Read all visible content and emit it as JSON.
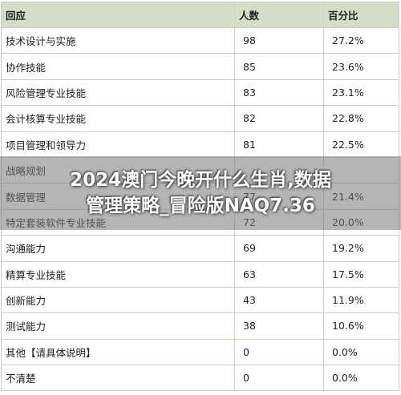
{
  "table": {
    "header": [
      "回应",
      "人数",
      "百分比"
    ],
    "rows": [
      [
        "技术设计与实施",
        "98",
        "27.2%"
      ],
      [
        "协作技能",
        "85",
        "23.6%"
      ],
      [
        "风险管理专业技能",
        "83",
        "23.1%"
      ],
      [
        "会计核算专业技能",
        "82",
        "22.8%"
      ],
      [
        "项目管理和领导力",
        "81",
        "22.5%"
      ],
      [
        "战略规划"
      ],
      [
        "数据管理",
        "77",
        "21.4%"
      ],
      [
        "特定套装软件专业技能",
        "72",
        "20.0%"
      ],
      [
        "沟通能力",
        "69",
        "19.2%"
      ],
      [
        "精算专业技能",
        "63",
        "17.5%"
      ],
      [
        "创新能力",
        "43",
        "11.9%"
      ],
      [
        "测试能力",
        "38",
        "10.6%"
      ],
      [
        "其他【请具体说明】",
        "0",
        "0.0%"
      ],
      [
        "不清楚",
        "0",
        "0.0%"
      ]
    ]
  },
  "overlay": {
    "lines": [
      "2024澳门今晚开什么生肖,数据",
      "管理策略_冒险版NAQ7.36"
    ]
  }
}
